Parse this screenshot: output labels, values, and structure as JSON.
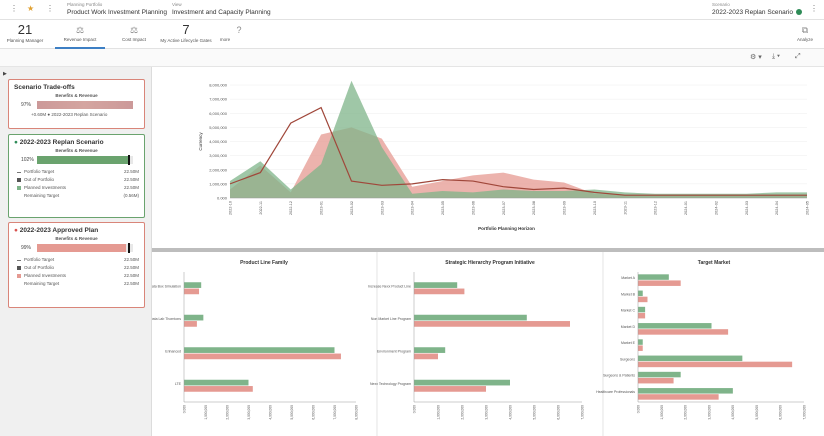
{
  "header": {
    "portfolio_label": "Planning Portfolio",
    "portfolio_value": "Product Work Investment Planning",
    "view_label": "View",
    "view_value": "Investment and Capacity Planning",
    "scenario_label": "Scenario",
    "scenario_value": "2022-2023 Replan Scenario",
    "scenario_status_color": "#2e8b57"
  },
  "toolbar": {
    "items": [
      {
        "count": "21",
        "label": "Planning Manager"
      },
      {
        "icon": "scale-icon",
        "label": "Revenue Impact",
        "active": true
      },
      {
        "icon": "scale-icon",
        "label": "Cost Impact"
      },
      {
        "count": "7",
        "label": "My Active Lifecycle Gates"
      },
      {
        "label": "more"
      },
      {
        "icon": "question-icon"
      }
    ],
    "analyze_label": "Analyze"
  },
  "left_panel": {
    "tradeoffs": {
      "title": "Scenario Trade-offs",
      "subtitle": "Benefits & Revenue",
      "pct": "97%",
      "legend": "+0.60M ● 2022-2023 Replan Scenario"
    },
    "replan": {
      "title": "2022-2023 Replan Scenario",
      "subtitle": "Benefits & Revenue",
      "pct": "102%",
      "fill": 1.0,
      "rows": [
        {
          "k": "Portfolio Target",
          "v": "22.50M"
        },
        {
          "k": "Out of Portfolio",
          "v": "22.50M"
        },
        {
          "k": "Planned Investments",
          "v": "22.50M"
        },
        {
          "k": "Remaining Target",
          "v": "(0.56M)"
        }
      ]
    },
    "approved": {
      "title": "2022-2023 Approved Plan",
      "subtitle": "Benefits & Revenue",
      "pct": "99%",
      "fill": 0.97,
      "rows": [
        {
          "k": "Portfolio Target",
          "v": "22.50M"
        },
        {
          "k": "Out of Portfolio",
          "v": "22.50M"
        },
        {
          "k": "Planned Investments",
          "v": "22.50M"
        },
        {
          "k": "Remaining Target",
          "v": "22.50M"
        }
      ]
    }
  },
  "colors": {
    "green": "#7fb48a",
    "red": "#e59a92",
    "line": "#a0473a"
  },
  "chart_data": [
    {
      "type": "area",
      "title": "",
      "xlabel": "Portfolio Planning Horizon",
      "ylabel": "Currency",
      "ylim": [
        0,
        8.0
      ],
      "yticks": [
        "0.000",
        "1,000,000",
        "2,000,000",
        "3,000,000",
        "4,000,000",
        "5,000,000",
        "6,000,000",
        "7,000,000",
        "8,000,000"
      ],
      "categories": [
        "2022-10",
        "2022-11",
        "2022-12",
        "2023-01",
        "2023-02",
        "2023-03",
        "2023-04",
        "2023-05",
        "2023-06",
        "2023-07",
        "2023-08",
        "2023-09",
        "2023-10",
        "2023-11",
        "2023-12",
        "2024-01",
        "2024-02",
        "2024-03",
        "2024-04",
        "2024-05"
      ],
      "series": [
        {
          "values": [
            1.2,
            2.6,
            0.6,
            2.4,
            8.3,
            3.6,
            0.3,
            0.5,
            0.4,
            0.6,
            0.5,
            0.5,
            0.6,
            0.4,
            0.3,
            0.3,
            0.3,
            0.3,
            0.4,
            0.4
          ]
        },
        {
          "values": [
            0.6,
            2.3,
            0.4,
            4.5,
            5.0,
            4.2,
            0.8,
            1.2,
            1.6,
            1.8,
            1.3,
            1.1,
            0.3,
            0.2,
            0.2,
            0.2,
            0.2,
            0.2,
            0.2,
            0.2
          ]
        },
        {
          "values": [
            1.0,
            1.8,
            5.3,
            6.4,
            1.2,
            0.9,
            1.0,
            1.3,
            1.2,
            0.8,
            0.6,
            0.7,
            0.4,
            0.2,
            0.2,
            0.2,
            0.2,
            0.2,
            0.2,
            0.2
          ]
        }
      ],
      "grid": true
    },
    {
      "type": "bar",
      "title": "Product Line Family",
      "categories": [
        "EBS - Data Box Simulation",
        "EHT - Data Lab Thorntons",
        "Enhanced",
        "LTE"
      ],
      "series": [
        {
          "values": [
            0.8,
            0.9,
            7.0,
            3.0
          ]
        },
        {
          "values": [
            0.7,
            0.6,
            7.3,
            3.2
          ]
        }
      ],
      "xticks": [
        "0.000",
        "1,000,000",
        "2,000,000",
        "3,000,000",
        "4,000,000",
        "5,000,000",
        "6,000,000",
        "7,000,000",
        "8,000,000"
      ]
    },
    {
      "type": "bar",
      "title": "Strategic Hierarchy Program Initiative",
      "categories": [
        "Increase Nexx Product Line",
        "Non Market Line Program",
        "Environment Program",
        "Nexx Technology Program"
      ],
      "series": [
        {
          "values": [
            1.8,
            4.7,
            1.3,
            4.0
          ]
        },
        {
          "values": [
            2.1,
            6.5,
            1.0,
            3.0
          ]
        }
      ],
      "xticks": [
        "0.000",
        "1,000,000",
        "2,000,000",
        "3,000,000",
        "4,000,000",
        "5,000,000",
        "6,000,000",
        "7,000,000"
      ]
    },
    {
      "type": "bar",
      "title": "Target Market",
      "categories": [
        "Market A",
        "Market B",
        "Market C",
        "Market D",
        "Market E",
        "Surgeons",
        "Surgeons & Patients",
        "Healthcare Professionals"
      ],
      "series": [
        {
          "values": [
            1.3,
            0.2,
            0.3,
            3.1,
            0.2,
            4.4,
            1.8,
            4.0
          ]
        },
        {
          "values": [
            1.8,
            0.4,
            0.3,
            3.8,
            0.2,
            6.5,
            1.5,
            3.4
          ]
        }
      ],
      "xticks": [
        "0.000",
        "1,000,000",
        "2,000,000",
        "3,000,000",
        "4,000,000",
        "5,000,000",
        "6,000,000",
        "7,000,000"
      ]
    }
  ]
}
